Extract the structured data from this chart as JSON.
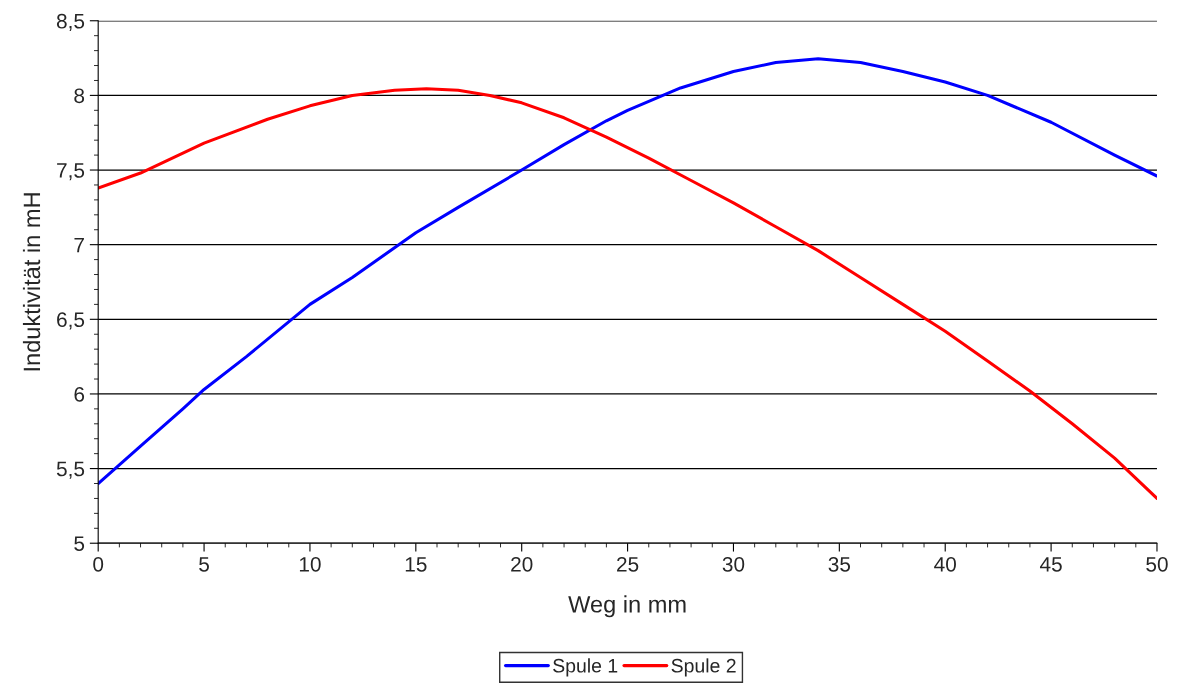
{
  "chart_data": {
    "type": "line",
    "xlabel": "Weg in mm",
    "ylabel": "Induktivität in mH",
    "xlim": [
      0,
      50
    ],
    "xticks": [
      0,
      5,
      10,
      15,
      20,
      25,
      30,
      35,
      40,
      45,
      50
    ],
    "ylim": [
      5,
      8.5
    ],
    "yticks": [
      {
        "value": 5,
        "label": "5"
      },
      {
        "value": 5.5,
        "label": "5,5"
      },
      {
        "value": 6,
        "label": "6"
      },
      {
        "value": 6.5,
        "label": "6,5"
      },
      {
        "value": 7,
        "label": "7"
      },
      {
        "value": 7.5,
        "label": "7,5"
      },
      {
        "value": 8,
        "label": "8"
      },
      {
        "value": 8.5,
        "label": "8,5"
      }
    ],
    "grid": "y",
    "legend": "bottom",
    "marker": "none",
    "line_style": "solid",
    "series": [
      {
        "name": "Spule 1",
        "color": "#0000ff",
        "x": [
          0,
          2,
          4,
          5,
          7,
          10,
          12,
          15,
          17,
          20,
          22,
          24,
          25,
          27.5,
          30,
          32,
          34,
          36,
          38,
          40,
          42,
          45,
          48,
          50
        ],
        "values": [
          5.4,
          5.65,
          5.9,
          6.03,
          6.25,
          6.6,
          6.78,
          7.08,
          7.25,
          7.5,
          7.67,
          7.83,
          7.9,
          8.05,
          8.16,
          8.22,
          8.245,
          8.22,
          8.16,
          8.09,
          8.0,
          7.82,
          7.6,
          7.46
        ]
      },
      {
        "name": "Spule 2",
        "color": "#ff0000",
        "x": [
          0,
          2,
          5,
          8,
          10,
          12,
          14,
          15.5,
          17,
          18.5,
          20,
          22,
          24,
          26,
          28,
          30,
          32,
          34,
          36,
          38,
          40,
          42,
          44,
          46,
          48,
          50
        ],
        "values": [
          7.38,
          7.48,
          7.68,
          7.84,
          7.93,
          8.0,
          8.035,
          8.045,
          8.035,
          8.0,
          7.95,
          7.85,
          7.72,
          7.58,
          7.43,
          7.28,
          7.12,
          6.96,
          6.78,
          6.6,
          6.42,
          6.22,
          6.02,
          5.8,
          5.57,
          5.3
        ]
      }
    ]
  }
}
